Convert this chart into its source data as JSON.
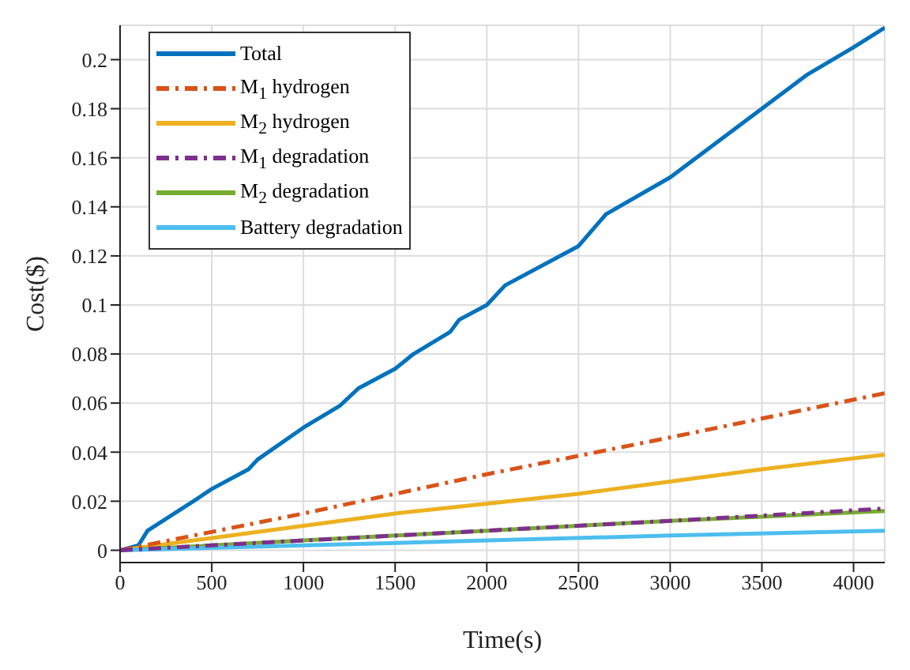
{
  "chart_data": {
    "type": "line",
    "xlabel": "Time(s)",
    "ylabel": "Cost($)",
    "xlim": [
      0,
      4170
    ],
    "xticks": [
      0,
      500,
      1000,
      1500,
      2000,
      2500,
      3000,
      3500,
      4000
    ],
    "ylim": [
      -0.005,
      0.214
    ],
    "yticks": [
      0,
      0.02,
      0.04,
      0.06,
      0.08,
      0.1,
      0.12,
      0.14,
      0.16,
      0.18,
      0.2
    ],
    "grid": true,
    "legend": "top left",
    "marker": "none",
    "series": [
      {
        "name": "Total",
        "color": "#0072bd",
        "line_style": "solid",
        "x": [
          0,
          100,
          150,
          400,
          500,
          700,
          750,
          1000,
          1200,
          1300,
          1500,
          1600,
          1800,
          1850,
          2000,
          2100,
          2500,
          2650,
          3000,
          3250,
          3500,
          3750,
          4000,
          4170
        ],
        "values": [
          0,
          0.002,
          0.008,
          0.02,
          0.025,
          0.033,
          0.037,
          0.05,
          0.059,
          0.066,
          0.074,
          0.08,
          0.089,
          0.094,
          0.1,
          0.108,
          0.124,
          0.137,
          0.152,
          0.166,
          0.18,
          0.194,
          0.205,
          0.213
        ]
      },
      {
        "name": "M$_{1}$ hydrogen",
        "color": "#d95319",
        "line_style": "dashed",
        "x": [
          0,
          1000,
          2000,
          3000,
          4170
        ],
        "values": [
          0,
          0.015,
          0.031,
          0.046,
          0.064
        ]
      },
      {
        "name": "M$_{2}$ hydrogen",
        "color": "#edb120",
        "line_style": "solid",
        "x": [
          0,
          500,
          1000,
          1500,
          2000,
          2500,
          3000,
          3500,
          4170
        ],
        "values": [
          0,
          0.005,
          0.01,
          0.015,
          0.019,
          0.023,
          0.028,
          0.033,
          0.039
        ]
      },
      {
        "name": "M$_{1}$ degradation",
        "color": "#7e2f8e",
        "line_style": "dashed",
        "x": [
          0,
          1000,
          2000,
          3000,
          4170
        ],
        "values": [
          0,
          0.004,
          0.008,
          0.012,
          0.017
        ]
      },
      {
        "name": "M$_{2}$ degradation",
        "color": "#77ac30",
        "line_style": "solid",
        "x": [
          0,
          1000,
          2000,
          3000,
          4170
        ],
        "values": [
          0,
          0.004,
          0.008,
          0.012,
          0.016
        ]
      },
      {
        "name": "Battery degradation",
        "color": "#4dbeee",
        "line_style": "solid",
        "x": [
          0,
          1000,
          2000,
          3000,
          4170
        ],
        "values": [
          0,
          0.002,
          0.004,
          0.006,
          0.008
        ]
      }
    ]
  }
}
